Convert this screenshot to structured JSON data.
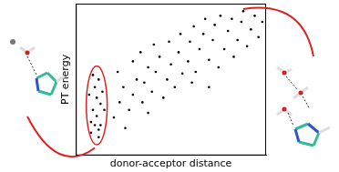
{
  "chart_data": {
    "type": "scatter",
    "x_label": "donor-acceptor distance",
    "y_label": "PT energy",
    "x": [
      0.8,
      1.0,
      1.2,
      0.9,
      1.1,
      1.3,
      0.7,
      1.0,
      1.2,
      1.4,
      0.8,
      1.1,
      1.3,
      1.5,
      0.9,
      1.2,
      2.0,
      2.3,
      2.5,
      2.2,
      2.8,
      3.0,
      3.2,
      3.0,
      3.5,
      3.6,
      3.8,
      3.4,
      4.0,
      4.2,
      4.4,
      4.1,
      4.6,
      4.8,
      5.0,
      4.9,
      5.2,
      5.4,
      5.5,
      5.6,
      5.9,
      6.0,
      6.2,
      6.3,
      6.5,
      6.7,
      6.8,
      7.0,
      7.2,
      7.3,
      7.5,
      7.6,
      7.8,
      8.0,
      8.2,
      8.3,
      8.5,
      8.7,
      8.8,
      9.0,
      9.2,
      9.4,
      9.6,
      9.8,
      6.1,
      7.0,
      2.6,
      3.8
    ],
    "values": [
      1.5,
      2.0,
      1.2,
      3.0,
      2.6,
      3.4,
      4.0,
      4.5,
      5.0,
      4.2,
      2.2,
      3.8,
      2.0,
      3.0,
      5.3,
      1.7,
      2.5,
      3.5,
      4.5,
      5.5,
      3.0,
      4.0,
      5.0,
      6.2,
      3.5,
      4.8,
      5.8,
      6.8,
      4.2,
      5.5,
      6.5,
      7.3,
      3.8,
      5.0,
      6.0,
      7.5,
      4.5,
      6.8,
      8.0,
      5.4,
      6.2,
      7.5,
      8.5,
      5.5,
      7.0,
      8.0,
      9.0,
      6.3,
      7.6,
      8.6,
      5.8,
      9.2,
      7.0,
      8.2,
      9.0,
      6.5,
      7.6,
      8.8,
      9.5,
      7.2,
      8.3,
      9.2,
      7.8,
      8.8,
      4.8,
      4.5,
      1.8,
      2.8
    ],
    "color": "#000000",
    "marker": "circle",
    "xlim": [
      0,
      10
    ],
    "ylim": [
      0,
      10
    ],
    "tick_labels": false,
    "grid": false
  }
}
